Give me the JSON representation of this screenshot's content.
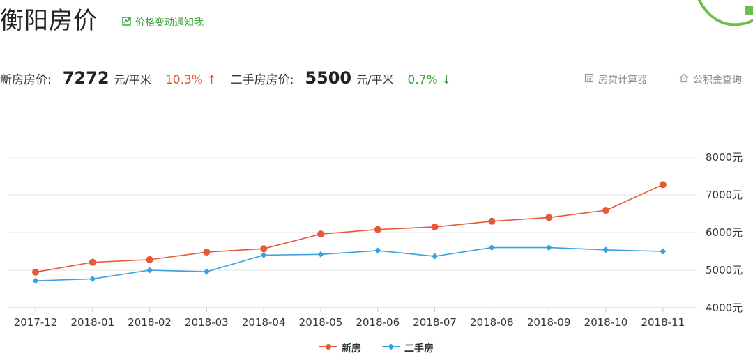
{
  "header": {
    "title": "衡阳房价",
    "notify_label": "价格变动通知我"
  },
  "prices": {
    "new_label": "新房房价:",
    "new_value": "7272",
    "new_unit": "元/平米",
    "new_change": "10.3% ↑",
    "second_label": "二手房房价:",
    "second_value": "5500",
    "second_unit": "元/平米",
    "second_change": "0.7% ↓"
  },
  "tools": {
    "loan_calc": "房贷计算器",
    "fund_query": "公积金查询"
  },
  "colors": {
    "new_series": "#e8573a",
    "second_series": "#3aa0e0",
    "up": "#e8513e",
    "down": "#3aa33a",
    "accent": "#3aa33a"
  },
  "icons": {
    "notify": "trend-link-icon",
    "loan_calc": "calculator-icon",
    "fund_query": "house-icon",
    "decoration": "green-blob"
  },
  "chart_data": {
    "type": "line",
    "categories": [
      "2017-12",
      "2018-01",
      "2018-02",
      "2018-03",
      "2018-04",
      "2018-05",
      "2018-06",
      "2018-07",
      "2018-08",
      "2018-09",
      "2018-10",
      "2018-11"
    ],
    "series": [
      {
        "name": "新房",
        "values": [
          4950,
          5210,
          5280,
          5480,
          5570,
          5960,
          6080,
          6150,
          6300,
          6400,
          6590,
          7272
        ]
      },
      {
        "name": "二手房",
        "values": [
          4720,
          4770,
          5000,
          4960,
          5400,
          5420,
          5520,
          5370,
          5600,
          5600,
          5540,
          5500
        ]
      }
    ],
    "yticks": [
      "4000元",
      "5000元",
      "6000元",
      "7000元",
      "8000元"
    ],
    "ylim": [
      4000,
      8000
    ],
    "grid": true,
    "y_axis_side": "right",
    "legend_position": "bottom-center"
  }
}
